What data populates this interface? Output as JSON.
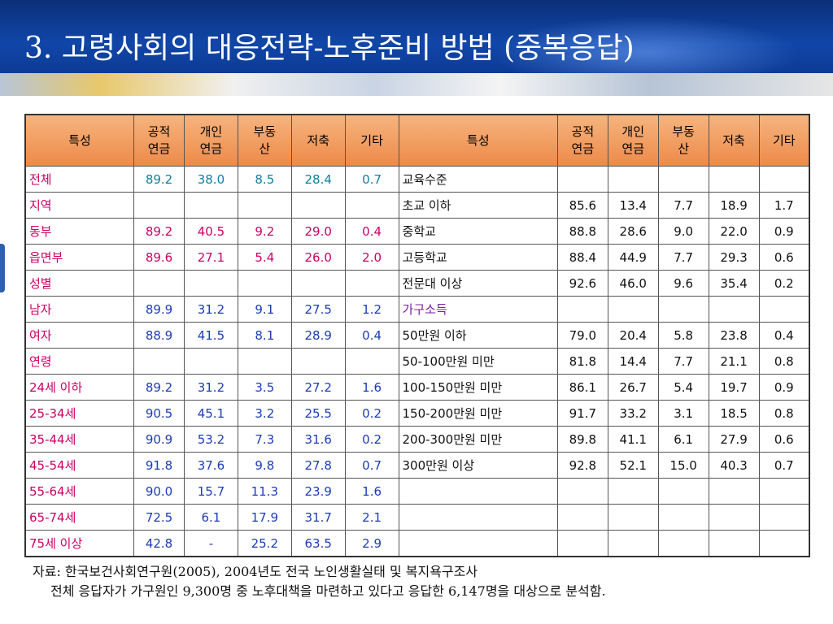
{
  "title": "3. 고령사회의 대응전략-노후준비 방법 (중복응답)",
  "headers": {
    "left": [
      "특성",
      "공적\n연금",
      "개인\n연금",
      "부동\n산",
      "저축",
      "기타"
    ],
    "right": [
      "특성",
      "공적\n연금",
      "개인\n연금",
      "부동\n산",
      "저축",
      "기타"
    ]
  },
  "rows": [
    {
      "l": [
        "전체",
        "89.2",
        "38.0",
        "8.5",
        "28.4",
        "0.7"
      ],
      "r": [
        "교육수준",
        "",
        "",
        "",
        "",
        ""
      ]
    },
    {
      "l": [
        "지역",
        "",
        "",
        "",
        "",
        ""
      ],
      "r": [
        "초교 이하",
        "85.6",
        "13.4",
        "7.7",
        "18.9",
        "1.7"
      ]
    },
    {
      "l": [
        "동부",
        "89.2",
        "40.5",
        "9.2",
        "29.0",
        "0.4"
      ],
      "r": [
        "중학교",
        "88.8",
        "28.6",
        "9.0",
        "22.0",
        "0.9"
      ]
    },
    {
      "l": [
        "읍면부",
        "89.6",
        "27.1",
        "5.4",
        "26.0",
        "2.0"
      ],
      "r": [
        "고등학교",
        "88.4",
        "44.9",
        "7.7",
        "29.3",
        "0.6"
      ]
    },
    {
      "l": [
        "성별",
        "",
        "",
        "",
        "",
        ""
      ],
      "r": [
        "전문대 이상",
        "92.6",
        "46.0",
        "9.6",
        "35.4",
        "0.2"
      ]
    },
    {
      "l": [
        "남자",
        "89.9",
        "31.2",
        "9.1",
        "27.5",
        "1.2"
      ],
      "r": [
        "가구소득",
        "",
        "",
        "",
        "",
        ""
      ]
    },
    {
      "l": [
        "여자",
        "88.9",
        "41.5",
        "8.1",
        "28.9",
        "0.4"
      ],
      "r": [
        "50만원 이하",
        "79.0",
        "20.4",
        "5.8",
        "23.8",
        "0.4"
      ]
    },
    {
      "l": [
        "연령",
        "",
        "",
        "",
        "",
        ""
      ],
      "r": [
        "50-100만원 미만",
        "81.8",
        "14.4",
        "7.7",
        "21.1",
        "0.8"
      ]
    },
    {
      "l": [
        "24세 이하",
        "89.2",
        "31.2",
        "3.5",
        "27.2",
        "1.6"
      ],
      "r": [
        "100-150만원 미만",
        "86.1",
        "26.7",
        "5.4",
        "19.7",
        "0.9"
      ]
    },
    {
      "l": [
        "25-34세",
        "90.5",
        "45.1",
        "3.2",
        "25.5",
        "0.2"
      ],
      "r": [
        "150-200만원 미만",
        "91.7",
        "33.2",
        "3.1",
        "18.5",
        "0.8"
      ]
    },
    {
      "l": [
        "35-44세",
        "90.9",
        "53.2",
        "7.3",
        "31.6",
        "0.2"
      ],
      "r": [
        "200-300만원 미만",
        "89.8",
        "41.1",
        "6.1",
        "27.9",
        "0.6"
      ]
    },
    {
      "l": [
        "45-54세",
        "91.8",
        "37.6",
        "9.8",
        "27.8",
        "0.7"
      ],
      "r": [
        "300만원 이상",
        "92.8",
        "52.1",
        "15.0",
        "40.3",
        "0.7"
      ]
    },
    {
      "l": [
        "55-64세",
        "90.0",
        "15.7",
        "11.3",
        "23.9",
        "1.6"
      ],
      "r": [
        "",
        "",
        "",
        "",
        "",
        ""
      ]
    },
    {
      "l": [
        "65-74세",
        "72.5",
        "6.1",
        "17.9",
        "31.7",
        "2.1"
      ],
      "r": [
        "",
        "",
        "",
        "",
        "",
        ""
      ]
    },
    {
      "l": [
        "75세 이상",
        "42.8",
        "-",
        "25.2",
        "63.5",
        "2.9"
      ],
      "r": [
        "",
        "",
        "",
        "",
        "",
        ""
      ]
    }
  ],
  "footnote": {
    "line1": "자료: 한국보건사회연구원(2005), 2004년도 전국 노인생활실태 및 복지욕구조사",
    "line2": "전체 응답자가 가구원인 9,300명 중 노후대책을 마련하고 있다고 응답한 6,147명을 대상으로 분석함."
  },
  "colors": {
    "header_bg": "#1046a8",
    "table_header": "#ed8a4a",
    "category_text": "#cc0066",
    "left_values": "#1a3db5",
    "total_values": "#0e7fa0",
    "right_values": "#111111",
    "income_category": "#7a1fa0"
  }
}
